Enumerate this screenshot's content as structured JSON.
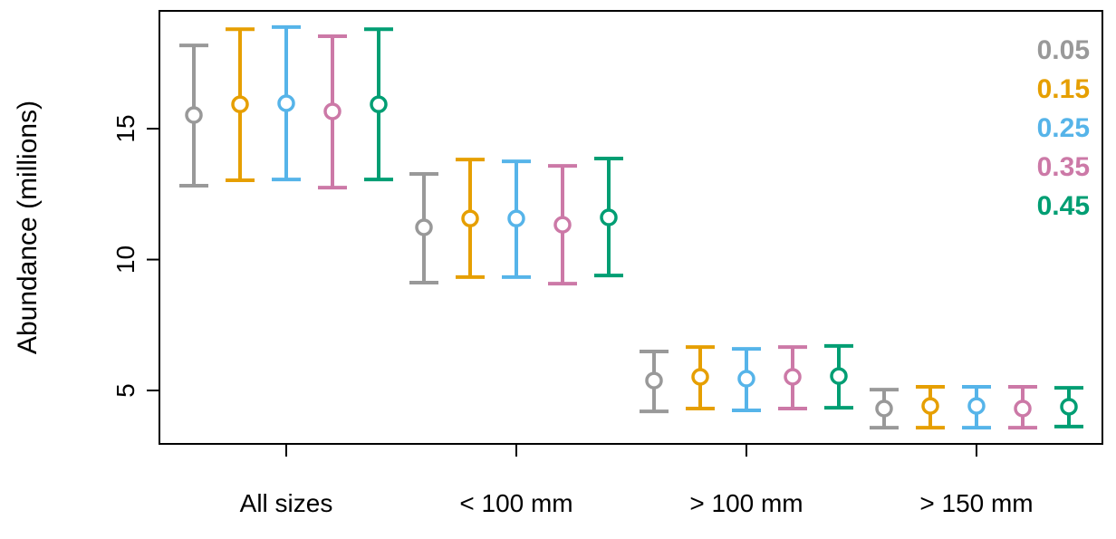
{
  "chart_data": {
    "type": "errorbar",
    "title": "",
    "xlabel": "",
    "ylabel": "Abundance (millions)",
    "ylim": [
      2.96,
      19.5
    ],
    "yticks": [
      5,
      10,
      15
    ],
    "grid": false,
    "legend_position": "top-right",
    "categories": [
      "All sizes",
      "< 100 mm",
      "> 100 mm",
      "> 150 mm"
    ],
    "series": [
      {
        "name": "0.05",
        "color": "#999999",
        "values": [
          15.52,
          11.23,
          5.38,
          4.31
        ],
        "lower": [
          12.82,
          9.12,
          4.2,
          3.58
        ],
        "upper": [
          18.18,
          13.27,
          6.49,
          5.03
        ]
      },
      {
        "name": "0.15",
        "color": "#E69F00",
        "values": [
          15.93,
          11.57,
          5.52,
          4.41
        ],
        "lower": [
          13.03,
          9.33,
          4.31,
          3.58
        ],
        "upper": [
          18.8,
          13.82,
          6.66,
          5.14
        ]
      },
      {
        "name": "0.25",
        "color": "#56B4E9",
        "values": [
          15.97,
          11.57,
          5.45,
          4.41
        ],
        "lower": [
          13.06,
          9.33,
          4.24,
          3.58
        ],
        "upper": [
          18.88,
          13.75,
          6.59,
          5.14
        ]
      },
      {
        "name": "0.35",
        "color": "#CC79A7",
        "values": [
          15.66,
          11.33,
          5.52,
          4.31
        ],
        "lower": [
          12.75,
          9.08,
          4.31,
          3.58
        ],
        "upper": [
          18.53,
          13.58,
          6.66,
          5.14
        ]
      },
      {
        "name": "0.45",
        "color": "#009E73",
        "values": [
          15.93,
          11.61,
          5.55,
          4.38
        ],
        "lower": [
          13.06,
          9.39,
          4.34,
          3.62
        ],
        "upper": [
          18.8,
          13.86,
          6.7,
          5.1
        ]
      }
    ]
  }
}
